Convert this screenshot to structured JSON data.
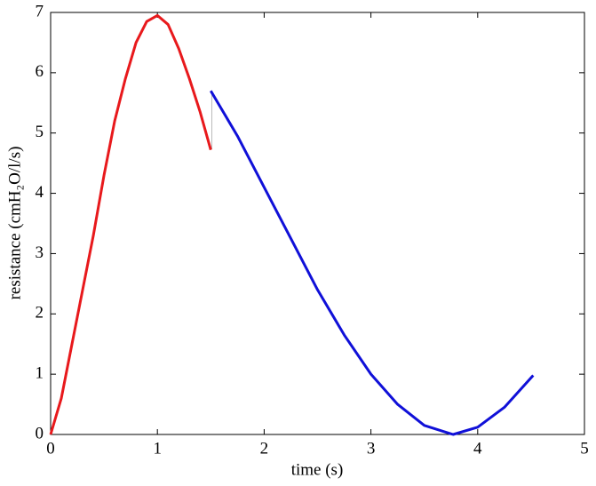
{
  "chart_data": {
    "type": "line",
    "xlabel": "time (s)",
    "ylabel": "resistance (cmH₂O/l/s)",
    "xlim": [
      0,
      5
    ],
    "xticks": [
      0,
      1,
      2,
      3,
      4,
      5
    ],
    "ylim": [
      0,
      7
    ],
    "yticks": [
      0,
      1,
      2,
      3,
      4,
      5,
      6,
      7
    ],
    "series": [
      {
        "color": "#e8191c",
        "x": [
          0,
          0.1,
          0.2,
          0.3,
          0.4,
          0.5,
          0.6,
          0.7,
          0.8,
          0.9,
          1.0,
          1.1,
          1.2,
          1.3,
          1.4,
          1.5
        ],
        "values": [
          0,
          0.6,
          1.5,
          2.4,
          3.3,
          4.3,
          5.2,
          5.9,
          6.5,
          6.85,
          6.95,
          6.8,
          6.4,
          5.9,
          5.35,
          4.72
        ]
      },
      {
        "color": "#1010d8",
        "x": [
          1.5,
          1.75,
          2.0,
          2.25,
          2.5,
          2.75,
          3.0,
          3.25,
          3.5,
          3.77,
          4.0,
          4.25,
          4.52
        ],
        "values": [
          5.7,
          4.95,
          4.1,
          3.25,
          2.4,
          1.65,
          1.0,
          0.5,
          0.15,
          0,
          0.12,
          0.45,
          0.98
        ]
      }
    ]
  }
}
